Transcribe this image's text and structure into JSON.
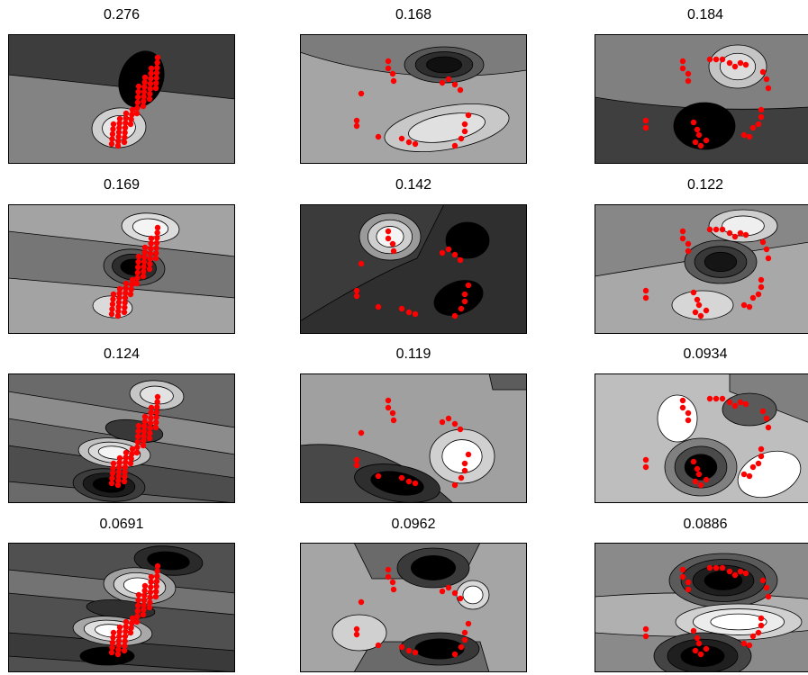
{
  "figure": {
    "background": "#ffffff",
    "point_color": "#ff0000",
    "contour_line_color": "#000000"
  },
  "chart_data": [
    {
      "type": "heatmap",
      "title": "0.276"
    },
    {
      "type": "heatmap",
      "title": "0.168"
    },
    {
      "type": "heatmap",
      "title": "0.184"
    },
    {
      "type": "heatmap",
      "title": "0.169"
    },
    {
      "type": "heatmap",
      "title": "0.142"
    },
    {
      "type": "heatmap",
      "title": "0.122"
    },
    {
      "type": "heatmap",
      "title": "0.124"
    },
    {
      "type": "heatmap",
      "title": "0.119"
    },
    {
      "type": "heatmap",
      "title": "0.0934"
    },
    {
      "type": "heatmap",
      "title": "0.0691"
    },
    {
      "type": "heatmap",
      "title": "0.0962"
    },
    {
      "type": "heatmap",
      "title": "0.0886"
    }
  ]
}
